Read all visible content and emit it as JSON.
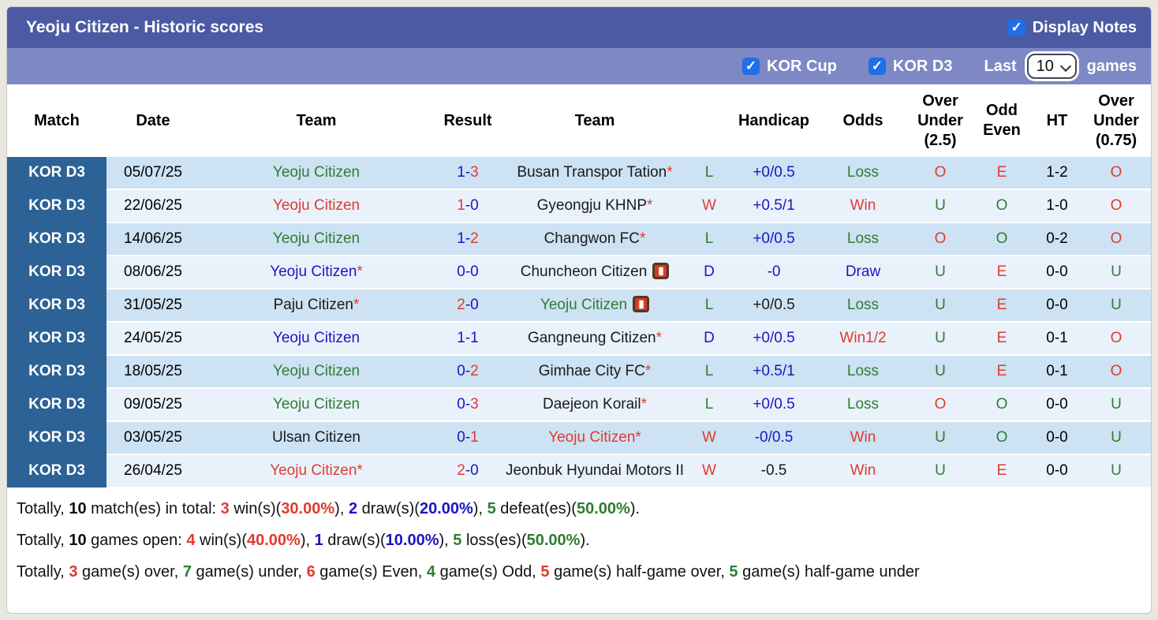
{
  "palette": {
    "green": "#2f7d32",
    "red": "#e03a30",
    "blue": "#1a15c4",
    "black": "#1a1a1a",
    "badge_bg": "#2c6295",
    "bar1_bg": "#4c5aa3",
    "bar2_bg": "#7d88c4",
    "checkbox_blue": "#1e6fe8",
    "row_dark": "#cde2f3",
    "row_light": "#e9f2fb"
  },
  "header": {
    "title": "Yeoju Citizen - Historic scores",
    "display_notes_label": "Display Notes",
    "display_notes_checked": true,
    "filters": {
      "kor_cup_label": "KOR Cup",
      "kor_cup_checked": true,
      "kor_d3_label": "KOR D3",
      "kor_d3_checked": true,
      "last_label": "Last",
      "games_label": "games",
      "games_count": "10"
    }
  },
  "icons": {
    "checkbox_check": "check-icon",
    "select_chevron": "chevron-down-icon",
    "note": "red-note-icon"
  },
  "table": {
    "columns": [
      {
        "id": "match",
        "label": "Match"
      },
      {
        "id": "date",
        "label": "Date"
      },
      {
        "id": "team_home",
        "label": "Team"
      },
      {
        "id": "result",
        "label": "Result"
      },
      {
        "id": "team_away",
        "label": "Team"
      },
      {
        "id": "outcome",
        "label": ""
      },
      {
        "id": "handicap",
        "label": "Handicap"
      },
      {
        "id": "odds",
        "label": "Odds"
      },
      {
        "id": "ou25",
        "label": "Over\nUnder\n(2.5)"
      },
      {
        "id": "odd_even",
        "label": "Odd\nEven"
      },
      {
        "id": "ht",
        "label": "HT"
      },
      {
        "id": "ou075",
        "label": "Over\nUnder\n(0.75)"
      }
    ],
    "rows": [
      {
        "match": "KOR D3",
        "date": "05/07/25",
        "home": {
          "name": "Yeoju Citizen",
          "color": "green",
          "asterisk": false,
          "note": false
        },
        "result": {
          "home": "1",
          "away": "3",
          "home_color": "blue",
          "away_color": "red"
        },
        "away": {
          "name": "Busan Transpor Tation",
          "color": "black",
          "asterisk": true,
          "note": false
        },
        "outcome": {
          "text": "L",
          "color": "green"
        },
        "handicap": {
          "text": "+0/0.5",
          "color": "blue"
        },
        "odds": {
          "text": "Loss",
          "color": "green"
        },
        "ou25": {
          "text": "O",
          "color": "red"
        },
        "odd_even": {
          "text": "E",
          "color": "red"
        },
        "ht": "1-2",
        "ou075": {
          "text": "O",
          "color": "red"
        }
      },
      {
        "match": "KOR D3",
        "date": "22/06/25",
        "home": {
          "name": "Yeoju Citizen",
          "color": "red",
          "asterisk": false,
          "note": false
        },
        "result": {
          "home": "1",
          "away": "0",
          "home_color": "red",
          "away_color": "blue"
        },
        "away": {
          "name": "Gyeongju KHNP",
          "color": "black",
          "asterisk": true,
          "note": false
        },
        "outcome": {
          "text": "W",
          "color": "red"
        },
        "handicap": {
          "text": "+0.5/1",
          "color": "blue"
        },
        "odds": {
          "text": "Win",
          "color": "red"
        },
        "ou25": {
          "text": "U",
          "color": "green"
        },
        "odd_even": {
          "text": "O",
          "color": "green"
        },
        "ht": "1-0",
        "ou075": {
          "text": "O",
          "color": "red"
        }
      },
      {
        "match": "KOR D3",
        "date": "14/06/25",
        "home": {
          "name": "Yeoju Citizen",
          "color": "green",
          "asterisk": false,
          "note": false
        },
        "result": {
          "home": "1",
          "away": "2",
          "home_color": "blue",
          "away_color": "red"
        },
        "away": {
          "name": "Changwon FC",
          "color": "black",
          "asterisk": true,
          "note": false
        },
        "outcome": {
          "text": "L",
          "color": "green"
        },
        "handicap": {
          "text": "+0/0.5",
          "color": "blue"
        },
        "odds": {
          "text": "Loss",
          "color": "green"
        },
        "ou25": {
          "text": "O",
          "color": "red"
        },
        "odd_even": {
          "text": "O",
          "color": "green"
        },
        "ht": "0-2",
        "ou075": {
          "text": "O",
          "color": "red"
        }
      },
      {
        "match": "KOR D3",
        "date": "08/06/25",
        "home": {
          "name": "Yeoju Citizen",
          "color": "blue",
          "asterisk": true,
          "note": false
        },
        "result": {
          "home": "0",
          "away": "0",
          "home_color": "blue",
          "away_color": "blue"
        },
        "away": {
          "name": "Chuncheon Citizen",
          "color": "black",
          "asterisk": false,
          "note": true
        },
        "outcome": {
          "text": "D",
          "color": "blue"
        },
        "handicap": {
          "text": "-0",
          "color": "blue"
        },
        "odds": {
          "text": "Draw",
          "color": "blue"
        },
        "ou25": {
          "text": "U",
          "color": "green"
        },
        "odd_even": {
          "text": "E",
          "color": "red"
        },
        "ht": "0-0",
        "ou075": {
          "text": "U",
          "color": "green"
        }
      },
      {
        "match": "KOR D3",
        "date": "31/05/25",
        "home": {
          "name": "Paju Citizen",
          "color": "black",
          "asterisk": true,
          "note": false
        },
        "result": {
          "home": "2",
          "away": "0",
          "home_color": "red",
          "away_color": "blue"
        },
        "away": {
          "name": "Yeoju Citizen",
          "color": "green",
          "asterisk": false,
          "note": true
        },
        "outcome": {
          "text": "L",
          "color": "green"
        },
        "handicap": {
          "text": "+0/0.5",
          "color": "black"
        },
        "odds": {
          "text": "Loss",
          "color": "green"
        },
        "ou25": {
          "text": "U",
          "color": "green"
        },
        "odd_even": {
          "text": "E",
          "color": "red"
        },
        "ht": "0-0",
        "ou075": {
          "text": "U",
          "color": "green"
        }
      },
      {
        "match": "KOR D3",
        "date": "24/05/25",
        "home": {
          "name": "Yeoju Citizen",
          "color": "blue",
          "asterisk": false,
          "note": false
        },
        "result": {
          "home": "1",
          "away": "1",
          "home_color": "blue",
          "away_color": "blue"
        },
        "away": {
          "name": "Gangneung Citizen",
          "color": "black",
          "asterisk": true,
          "note": false
        },
        "outcome": {
          "text": "D",
          "color": "blue"
        },
        "handicap": {
          "text": "+0/0.5",
          "color": "blue"
        },
        "odds": {
          "text": "Win1/2",
          "color": "red"
        },
        "ou25": {
          "text": "U",
          "color": "green"
        },
        "odd_even": {
          "text": "E",
          "color": "red"
        },
        "ht": "0-1",
        "ou075": {
          "text": "O",
          "color": "red"
        }
      },
      {
        "match": "KOR D3",
        "date": "18/05/25",
        "home": {
          "name": "Yeoju Citizen",
          "color": "green",
          "asterisk": false,
          "note": false
        },
        "result": {
          "home": "0",
          "away": "2",
          "home_color": "blue",
          "away_color": "red"
        },
        "away": {
          "name": "Gimhae City FC",
          "color": "black",
          "asterisk": true,
          "note": false
        },
        "outcome": {
          "text": "L",
          "color": "green"
        },
        "handicap": {
          "text": "+0.5/1",
          "color": "blue"
        },
        "odds": {
          "text": "Loss",
          "color": "green"
        },
        "ou25": {
          "text": "U",
          "color": "green"
        },
        "odd_even": {
          "text": "E",
          "color": "red"
        },
        "ht": "0-1",
        "ou075": {
          "text": "O",
          "color": "red"
        }
      },
      {
        "match": "KOR D3",
        "date": "09/05/25",
        "home": {
          "name": "Yeoju Citizen",
          "color": "green",
          "asterisk": false,
          "note": false
        },
        "result": {
          "home": "0",
          "away": "3",
          "home_color": "blue",
          "away_color": "red"
        },
        "away": {
          "name": "Daejeon Korail",
          "color": "black",
          "asterisk": true,
          "note": false
        },
        "outcome": {
          "text": "L",
          "color": "green"
        },
        "handicap": {
          "text": "+0/0.5",
          "color": "blue"
        },
        "odds": {
          "text": "Loss",
          "color": "green"
        },
        "ou25": {
          "text": "O",
          "color": "red"
        },
        "odd_even": {
          "text": "O",
          "color": "green"
        },
        "ht": "0-0",
        "ou075": {
          "text": "U",
          "color": "green"
        }
      },
      {
        "match": "KOR D3",
        "date": "03/05/25",
        "home": {
          "name": "Ulsan Citizen",
          "color": "black",
          "asterisk": false,
          "note": false
        },
        "result": {
          "home": "0",
          "away": "1",
          "home_color": "blue",
          "away_color": "red"
        },
        "away": {
          "name": "Yeoju Citizen",
          "color": "red",
          "asterisk": true,
          "note": false
        },
        "outcome": {
          "text": "W",
          "color": "red"
        },
        "handicap": {
          "text": "-0/0.5",
          "color": "blue"
        },
        "odds": {
          "text": "Win",
          "color": "red"
        },
        "ou25": {
          "text": "U",
          "color": "green"
        },
        "odd_even": {
          "text": "O",
          "color": "green"
        },
        "ht": "0-0",
        "ou075": {
          "text": "U",
          "color": "green"
        }
      },
      {
        "match": "KOR D3",
        "date": "26/04/25",
        "home": {
          "name": "Yeoju Citizen",
          "color": "red",
          "asterisk": true,
          "note": false
        },
        "result": {
          "home": "2",
          "away": "0",
          "home_color": "red",
          "away_color": "blue"
        },
        "away": {
          "name": "Jeonbuk Hyundai Motors II",
          "color": "black",
          "asterisk": false,
          "note": false
        },
        "outcome": {
          "text": "W",
          "color": "red"
        },
        "handicap": {
          "text": "-0.5",
          "color": "black"
        },
        "odds": {
          "text": "Win",
          "color": "red"
        },
        "ou25": {
          "text": "U",
          "color": "green"
        },
        "odd_even": {
          "text": "E",
          "color": "red"
        },
        "ht": "0-0",
        "ou075": {
          "text": "U",
          "color": "green"
        }
      }
    ]
  },
  "summary": {
    "lines": [
      [
        {
          "t": "Totally, "
        },
        {
          "t": "10",
          "b": true
        },
        {
          "t": " match(es) in total: "
        },
        {
          "t": "3",
          "c": "red",
          "b": true
        },
        {
          "t": " win(s)("
        },
        {
          "t": "30.00%",
          "c": "red",
          "b": true
        },
        {
          "t": "), "
        },
        {
          "t": "2",
          "c": "blue",
          "b": true
        },
        {
          "t": " draw(s)("
        },
        {
          "t": "20.00%",
          "c": "blue",
          "b": true
        },
        {
          "t": "), "
        },
        {
          "t": "5",
          "c": "green",
          "b": true
        },
        {
          "t": " defeat(es)("
        },
        {
          "t": "50.00%",
          "c": "green",
          "b": true
        },
        {
          "t": ")."
        }
      ],
      [
        {
          "t": "Totally, "
        },
        {
          "t": "10",
          "b": true
        },
        {
          "t": " games open: "
        },
        {
          "t": "4",
          "c": "red",
          "b": true
        },
        {
          "t": " win(s)("
        },
        {
          "t": "40.00%",
          "c": "red",
          "b": true
        },
        {
          "t": "), "
        },
        {
          "t": "1",
          "c": "blue",
          "b": true
        },
        {
          "t": " draw(s)("
        },
        {
          "t": "10.00%",
          "c": "blue",
          "b": true
        },
        {
          "t": "), "
        },
        {
          "t": "5",
          "c": "green",
          "b": true
        },
        {
          "t": " loss(es)("
        },
        {
          "t": "50.00%",
          "c": "green",
          "b": true
        },
        {
          "t": ")."
        }
      ],
      [
        {
          "t": "Totally, "
        },
        {
          "t": "3",
          "c": "red",
          "b": true
        },
        {
          "t": " game(s) over, "
        },
        {
          "t": "7",
          "c": "green",
          "b": true
        },
        {
          "t": " game(s) under, "
        },
        {
          "t": "6",
          "c": "red",
          "b": true
        },
        {
          "t": " game(s) Even, "
        },
        {
          "t": "4",
          "c": "green",
          "b": true
        },
        {
          "t": " game(s) Odd, "
        },
        {
          "t": "5",
          "c": "red",
          "b": true
        },
        {
          "t": " game(s) half-game over, "
        },
        {
          "t": "5",
          "c": "green",
          "b": true
        },
        {
          "t": " game(s) half-game under"
        }
      ]
    ]
  }
}
